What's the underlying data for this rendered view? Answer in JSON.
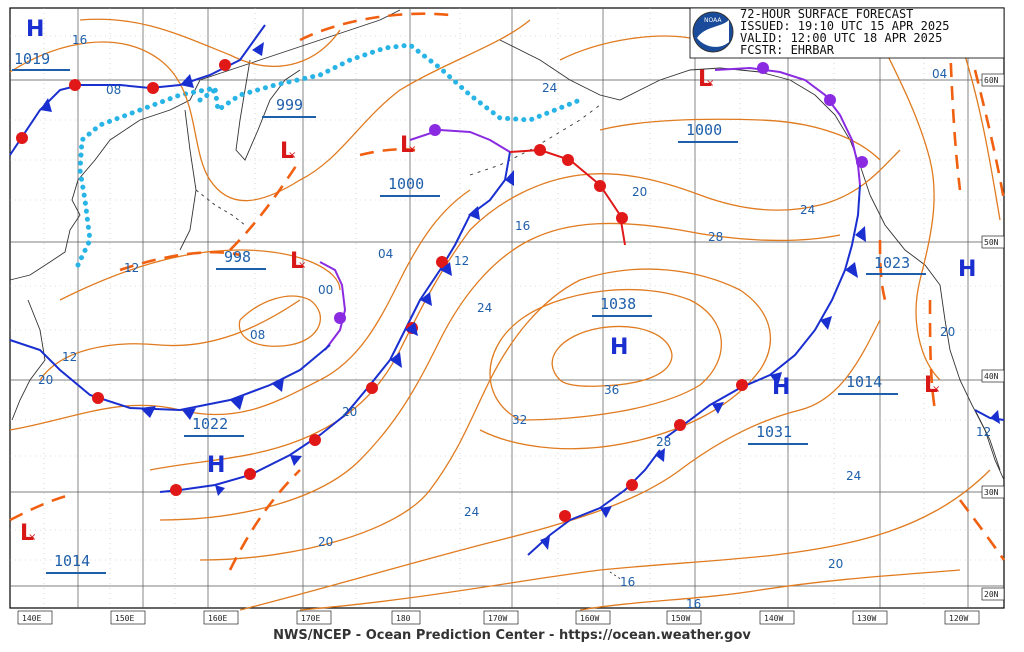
{
  "header": {
    "line1": "72-HOUR SURFACE FORECAST",
    "line2": "ISSUED: 19:10 UTC 15 APR 2025",
    "line3": "VALID:  12:00 UTC 18 APR 2025",
    "line4": "FCSTR:  EHRBAR",
    "logo_text": "NOAA"
  },
  "footer": "NWS/NCEP - Ocean Prediction Center - https://ocean.weather.gov",
  "longitude_labels": [
    "140E",
    "150E",
    "160E",
    "170E",
    "180",
    "170W",
    "160W",
    "150W",
    "140W",
    "130W",
    "120W"
  ],
  "latitude_labels": [
    "60N",
    "50N",
    "40N",
    "30N",
    "20N"
  ],
  "highs": [
    {
      "symbol": "H",
      "pressure": "1019"
    },
    {
      "symbol": "H",
      "pressure": "1022"
    },
    {
      "symbol": "H",
      "pressure": "1038"
    },
    {
      "symbol": "H",
      "pressure": "1031"
    },
    {
      "symbol": "H",
      "pressure": "1023"
    }
  ],
  "lows": [
    {
      "symbol": "L",
      "pressure": "999"
    },
    {
      "symbol": "L",
      "pressure": "1000"
    },
    {
      "symbol": "L",
      "pressure": "998"
    },
    {
      "symbol": "L",
      "pressure": "1000"
    },
    {
      "symbol": "L",
      "pressure": "1014"
    },
    {
      "symbol": "L",
      "pressure": "1014"
    }
  ],
  "isobar_labels": [
    "16",
    "08",
    "12",
    "04",
    "08",
    "12",
    "00",
    "20",
    "24",
    "16",
    "12",
    "20",
    "24",
    "28",
    "32",
    "36",
    "28",
    "24",
    "20",
    "16",
    "16",
    "20",
    "20",
    "24",
    "24",
    "20",
    "12",
    "04",
    "08"
  ],
  "colors": {
    "isobar": "#e07b20",
    "cold_front": "#1a2fd0",
    "warm_front": "#e01818",
    "occluded": "#8a2be2",
    "ice_edge": "#28b4e6",
    "trough": "#f06010",
    "label_blue": "#1f5faa",
    "low": "#d81818",
    "high": "#1a2fd0",
    "coast": "#333333"
  }
}
